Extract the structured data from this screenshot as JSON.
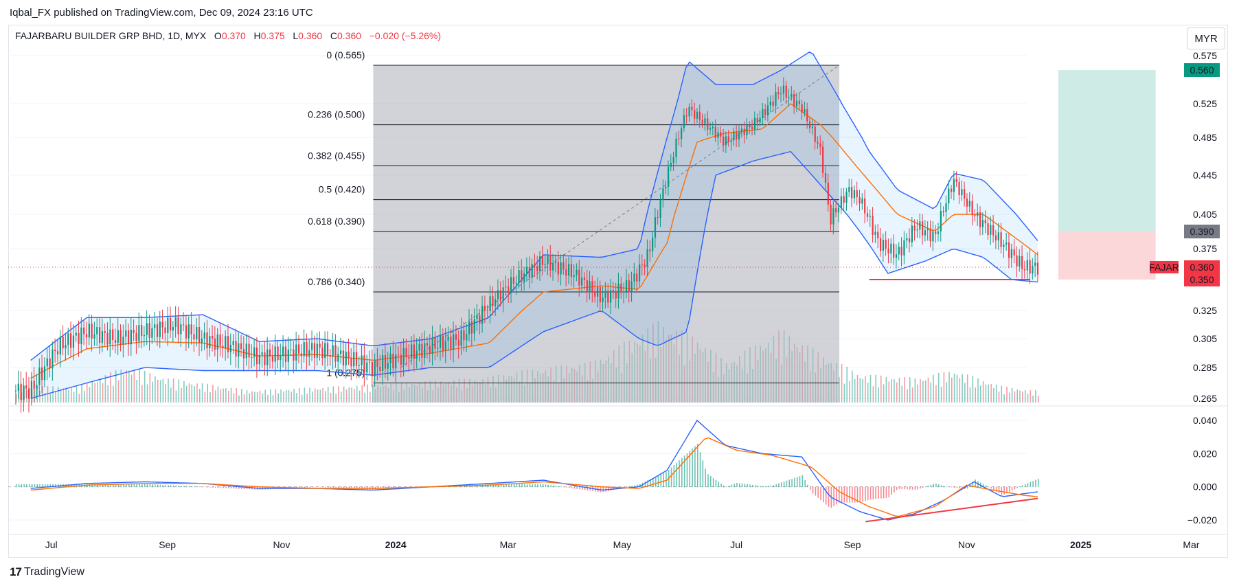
{
  "header": {
    "published": "Iqbal_FX published on TradingView.com, Dec 09, 2024 23:16 UTC"
  },
  "legend": {
    "symbol": "FAJARBARU BUILDER GRP BHD, 1D, MYX",
    "o_label": "O",
    "o": "0.370",
    "h_label": "H",
    "h": "0.375",
    "l_label": "L",
    "l": "0.360",
    "c_label": "C",
    "c": "0.360",
    "change": "−0.020 (−5.26%)"
  },
  "currency": "MYR",
  "footer": {
    "brand": "TradingView"
  },
  "colors": {
    "up": "#089981",
    "down": "#f23645",
    "bands": "#2962ff",
    "basis": "#ff6d00",
    "fib_bg": "#b2b5be"
  },
  "chart_data": [
    {
      "type": "candlestick",
      "title": "FAJARBARU BUILDER GRP BHD, 1D, MYX",
      "ylim": [
        0.265,
        0.585
      ],
      "y_ticks": [
        "0.575",
        "0.525",
        "0.485",
        "0.445",
        "0.405",
        "0.375",
        "0.325",
        "0.305",
        "0.285",
        "0.265"
      ],
      "x_ticks": [
        "Jul",
        "Sep",
        "Nov",
        "2024",
        "Mar",
        "May",
        "Jul",
        "Sep",
        "Nov",
        "2025",
        "Mar"
      ],
      "price_path": [
        [
          "2023-06-20",
          0.27
        ],
        [
          "2023-07-05",
          0.3
        ],
        [
          "2023-07-20",
          0.31
        ],
        [
          "2023-08-05",
          0.305
        ],
        [
          "2023-08-20",
          0.31
        ],
        [
          "2023-09-05",
          0.315
        ],
        [
          "2023-09-20",
          0.305
        ],
        [
          "2023-10-05",
          0.3
        ],
        [
          "2023-10-20",
          0.292
        ],
        [
          "2023-11-05",
          0.295
        ],
        [
          "2023-11-20",
          0.298
        ],
        [
          "2023-12-05",
          0.292
        ],
        [
          "2023-12-20",
          0.285
        ],
        [
          "2024-01-05",
          0.293
        ],
        [
          "2024-01-20",
          0.3
        ],
        [
          "2024-02-05",
          0.305
        ],
        [
          "2024-02-20",
          0.33
        ],
        [
          "2024-03-05",
          0.35
        ],
        [
          "2024-03-20",
          0.365
        ],
        [
          "2024-04-05",
          0.355
        ],
        [
          "2024-04-20",
          0.335
        ],
        [
          "2024-05-05",
          0.345
        ],
        [
          "2024-05-15",
          0.37
        ],
        [
          "2024-05-25",
          0.445
        ],
        [
          "2024-06-05",
          0.52
        ],
        [
          "2024-06-15",
          0.5
        ],
        [
          "2024-06-25",
          0.48
        ],
        [
          "2024-07-10",
          0.5
        ],
        [
          "2024-07-25",
          0.54
        ],
        [
          "2024-08-05",
          0.52
        ],
        [
          "2024-08-15",
          0.47
        ],
        [
          "2024-08-20",
          0.4
        ],
        [
          "2024-08-30",
          0.43
        ],
        [
          "2024-09-05",
          0.42
        ],
        [
          "2024-09-15",
          0.38
        ],
        [
          "2024-09-25",
          0.37
        ],
        [
          "2024-10-05",
          0.395
        ],
        [
          "2024-10-15",
          0.385
        ],
        [
          "2024-10-25",
          0.44
        ],
        [
          "2024-11-05",
          0.405
        ],
        [
          "2024-11-20",
          0.38
        ],
        [
          "2024-12-01",
          0.36
        ],
        [
          "2024-12-09",
          0.36
        ]
      ],
      "bollinger_upper": [
        [
          "2023-06-20",
          0.29
        ],
        [
          "2023-07-20",
          0.32
        ],
        [
          "2023-08-20",
          0.32
        ],
        [
          "2023-09-20",
          0.322
        ],
        [
          "2023-10-20",
          0.303
        ],
        [
          "2023-11-20",
          0.305
        ],
        [
          "2023-12-20",
          0.3
        ],
        [
          "2024-01-20",
          0.305
        ],
        [
          "2024-02-20",
          0.32
        ],
        [
          "2024-03-20",
          0.37
        ],
        [
          "2024-04-20",
          0.368
        ],
        [
          "2024-05-10",
          0.375
        ],
        [
          "2024-05-25",
          0.485
        ],
        [
          "2024-06-05",
          0.57
        ],
        [
          "2024-06-20",
          0.545
        ],
        [
          "2024-07-10",
          0.545
        ],
        [
          "2024-07-25",
          0.56
        ],
        [
          "2024-08-10",
          0.58
        ],
        [
          "2024-08-25",
          0.53
        ],
        [
          "2024-09-10",
          0.47
        ],
        [
          "2024-09-25",
          0.43
        ],
        [
          "2024-10-15",
          0.41
        ],
        [
          "2024-10-25",
          0.447
        ],
        [
          "2024-11-10",
          0.44
        ],
        [
          "2024-12-09",
          0.382
        ]
      ],
      "bollinger_basis": [
        [
          "2023-06-20",
          0.278
        ],
        [
          "2023-07-20",
          0.298
        ],
        [
          "2023-08-20",
          0.303
        ],
        [
          "2023-09-20",
          0.302
        ],
        [
          "2023-10-20",
          0.293
        ],
        [
          "2023-11-20",
          0.294
        ],
        [
          "2023-12-20",
          0.29
        ],
        [
          "2024-01-20",
          0.295
        ],
        [
          "2024-02-20",
          0.302
        ],
        [
          "2024-03-20",
          0.34
        ],
        [
          "2024-04-20",
          0.345
        ],
        [
          "2024-05-10",
          0.342
        ],
        [
          "2024-05-25",
          0.38
        ],
        [
          "2024-06-10",
          0.48
        ],
        [
          "2024-06-25",
          0.49
        ],
        [
          "2024-07-15",
          0.495
        ],
        [
          "2024-07-30",
          0.525
        ],
        [
          "2024-08-15",
          0.5
        ],
        [
          "2024-09-05",
          0.45
        ],
        [
          "2024-09-25",
          0.405
        ],
        [
          "2024-10-15",
          0.39
        ],
        [
          "2024-10-25",
          0.405
        ],
        [
          "2024-11-10",
          0.405
        ],
        [
          "2024-12-09",
          0.37
        ]
      ],
      "bollinger_lower": [
        [
          "2023-06-20",
          0.265
        ],
        [
          "2023-07-20",
          0.275
        ],
        [
          "2023-08-20",
          0.285
        ],
        [
          "2023-09-20",
          0.283
        ],
        [
          "2023-10-20",
          0.283
        ],
        [
          "2023-11-20",
          0.283
        ],
        [
          "2023-12-20",
          0.28
        ],
        [
          "2024-01-20",
          0.285
        ],
        [
          "2024-02-20",
          0.285
        ],
        [
          "2024-03-20",
          0.31
        ],
        [
          "2024-04-20",
          0.325
        ],
        [
          "2024-05-10",
          0.305
        ],
        [
          "2024-05-20",
          0.3
        ],
        [
          "2024-06-05",
          0.31
        ],
        [
          "2024-06-20",
          0.445
        ],
        [
          "2024-07-10",
          0.46
        ],
        [
          "2024-07-30",
          0.47
        ],
        [
          "2024-08-15",
          0.435
        ],
        [
          "2024-09-05",
          0.39
        ],
        [
          "2024-09-20",
          0.355
        ],
        [
          "2024-10-10",
          0.365
        ],
        [
          "2024-10-25",
          0.375
        ],
        [
          "2024-11-10",
          0.368
        ],
        [
          "2024-11-25",
          0.35
        ],
        [
          "2024-12-09",
          0.348
        ]
      ],
      "fibonacci": [
        {
          "label": "0 (0.565)",
          "price": 0.565
        },
        {
          "label": "0.236 (0.500)",
          "price": 0.5
        },
        {
          "label": "0.382 (0.455)",
          "price": 0.455
        },
        {
          "label": "0.5 (0.420)",
          "price": 0.42
        },
        {
          "label": "0.618 (0.390)",
          "price": 0.39
        },
        {
          "label": "0.786 (0.340)",
          "price": 0.34
        },
        {
          "label": "1 (0.275)",
          "price": 0.275
        }
      ],
      "fib_range": [
        "2023-12-20",
        "2024-08-25"
      ],
      "support_line": {
        "from": "2024-09-10",
        "to": "2024-12-05",
        "price": 0.35
      },
      "position": {
        "from": "2024-12-20",
        "to": "2025-02-10",
        "target": 0.56,
        "entry": 0.39,
        "stop": 0.35
      },
      "price_labels": [
        {
          "text": "0.560",
          "price": 0.56,
          "color": "#089981"
        },
        {
          "text": "0.390",
          "price": 0.39,
          "color": "#787b86"
        },
        {
          "text": "0.360",
          "price": 0.36,
          "color": "#f23645",
          "tag": "FAJAR"
        },
        {
          "text": "0.350",
          "price": 0.35,
          "color": "#f23645"
        }
      ],
      "current_price": 0.36,
      "volume": [
        [
          "2023-07-15",
          0.2
        ],
        [
          "2023-08-10",
          0.45
        ],
        [
          "2023-09-01",
          0.3
        ],
        [
          "2023-10-15",
          0.15
        ],
        [
          "2023-12-01",
          0.2
        ],
        [
          "2024-02-15",
          0.3
        ],
        [
          "2024-03-10",
          0.4
        ],
        [
          "2024-04-15",
          0.5
        ],
        [
          "2024-05-20",
          1.0
        ],
        [
          "2024-06-10",
          0.8
        ],
        [
          "2024-06-25",
          0.5
        ],
        [
          "2024-07-10",
          0.7
        ],
        [
          "2024-07-25",
          0.9
        ],
        [
          "2024-08-15",
          0.6
        ],
        [
          "2024-09-05",
          0.35
        ],
        [
          "2024-10-05",
          0.3
        ],
        [
          "2024-10-25",
          0.4
        ],
        [
          "2024-11-20",
          0.2
        ],
        [
          "2024-12-05",
          0.15
        ]
      ]
    },
    {
      "type": "line",
      "title": "",
      "ylim": [
        -0.025,
        0.045
      ],
      "y_ticks": [
        "0.040",
        "0.020",
        "0.000",
        "−0.020"
      ],
      "macd": [
        [
          "2023-06-20",
          -0.001
        ],
        [
          "2023-07-20",
          0.002
        ],
        [
          "2023-08-20",
          0.003
        ],
        [
          "2023-09-20",
          0.002
        ],
        [
          "2023-10-20",
          -0.001
        ],
        [
          "2023-11-20",
          -0.001
        ],
        [
          "2023-12-20",
          -0.002
        ],
        [
          "2024-01-20",
          0.0
        ],
        [
          "2024-02-20",
          0.002
        ],
        [
          "2024-03-20",
          0.004
        ],
        [
          "2024-04-20",
          -0.002
        ],
        [
          "2024-05-10",
          0.0
        ],
        [
          "2024-05-25",
          0.01
        ],
        [
          "2024-06-10",
          0.04
        ],
        [
          "2024-06-25",
          0.025
        ],
        [
          "2024-07-15",
          0.02
        ],
        [
          "2024-08-05",
          0.018
        ],
        [
          "2024-08-20",
          -0.006
        ],
        [
          "2024-09-05",
          -0.015
        ],
        [
          "2024-09-20",
          -0.02
        ],
        [
          "2024-10-05",
          -0.016
        ],
        [
          "2024-10-20",
          -0.008
        ],
        [
          "2024-11-05",
          0.003
        ],
        [
          "2024-11-20",
          -0.006
        ],
        [
          "2024-12-09",
          -0.003
        ]
      ],
      "signal": [
        [
          "2023-06-20",
          -0.002
        ],
        [
          "2023-07-20",
          0.001
        ],
        [
          "2023-08-20",
          0.002
        ],
        [
          "2023-09-20",
          0.002
        ],
        [
          "2023-10-20",
          0.0
        ],
        [
          "2023-11-20",
          -0.001
        ],
        [
          "2023-12-20",
          -0.001
        ],
        [
          "2024-01-20",
          0.0
        ],
        [
          "2024-02-20",
          0.001
        ],
        [
          "2024-03-20",
          0.003
        ],
        [
          "2024-04-20",
          0.0
        ],
        [
          "2024-05-10",
          -0.001
        ],
        [
          "2024-05-25",
          0.004
        ],
        [
          "2024-06-15",
          0.03
        ],
        [
          "2024-07-01",
          0.022
        ],
        [
          "2024-07-20",
          0.019
        ],
        [
          "2024-08-10",
          0.012
        ],
        [
          "2024-08-25",
          -0.003
        ],
        [
          "2024-09-10",
          -0.012
        ],
        [
          "2024-09-25",
          -0.018
        ],
        [
          "2024-10-15",
          -0.012
        ],
        [
          "2024-11-01",
          0.001
        ],
        [
          "2024-11-15",
          -0.002
        ],
        [
          "2024-12-01",
          -0.005
        ],
        [
          "2024-12-09",
          -0.006
        ]
      ],
      "divergence_line": {
        "from": [
          "2024-09-08",
          -0.021
        ],
        "to": [
          "2024-12-09",
          -0.007
        ]
      }
    }
  ]
}
